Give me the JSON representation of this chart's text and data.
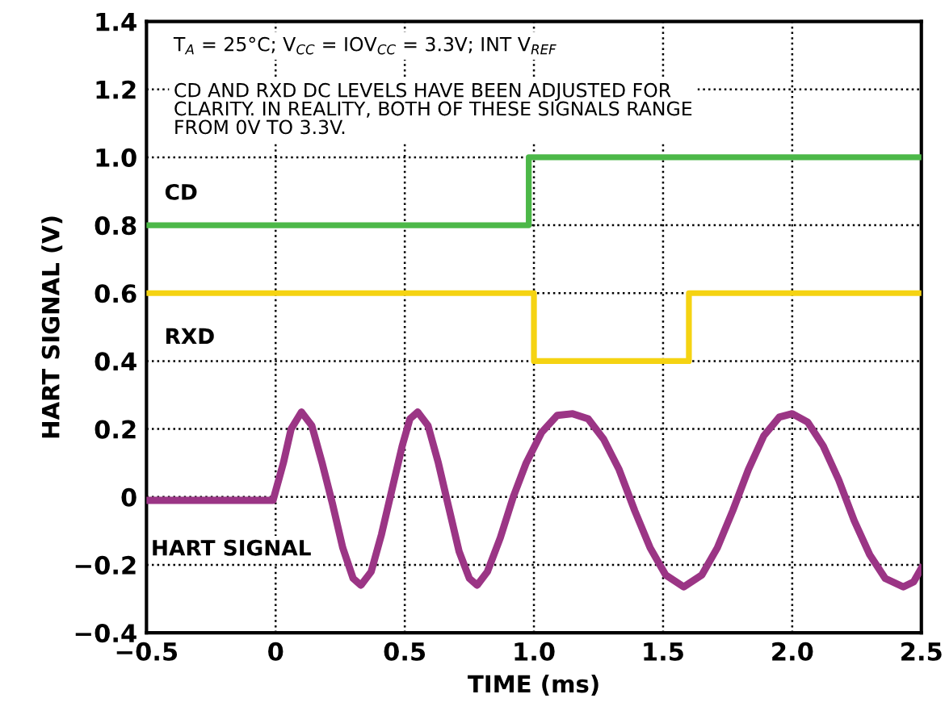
{
  "chart_data": {
    "type": "line",
    "xlabel": "TIME (ms)",
    "ylabel": "HART SIGNAL (V)",
    "xlim": [
      -0.5,
      2.5
    ],
    "xticks": [
      -0.5,
      0,
      0.5,
      {
        "value": 1.0,
        "label": "1.0"
      },
      1.5,
      {
        "value": 2.0,
        "label": "2.0"
      },
      2.5
    ],
    "ylim": [
      -0.4,
      1.4
    ],
    "yticks": [
      -0.4,
      -0.2,
      0,
      0.2,
      0.4,
      0.6,
      0.8,
      {
        "value": 1.0,
        "label": "1.0"
      },
      1.2,
      1.4
    ],
    "grid": true,
    "legend": false,
    "line_style": "solid",
    "marker": "none",
    "annotations": [
      "T$_{A}$ = 25°C; V$_{CC}$ = IOV$_{CC}$ = 3.3V; INT V$_{REF}$",
      "CD AND RXD DC LEVELS HAVE BEEN ADJUSTED FOR\nCLARITY. IN REALITY, BOTH OF THESE SIGNALS RANGE\nFROM 0V TO 3.3V."
    ],
    "series": [
      {
        "name": "CD",
        "type": "step",
        "color": "#4cb848",
        "x": [
          -0.5,
          0.98,
          2.5
        ],
        "values": [
          0.8,
          1.0,
          1.0
        ]
      },
      {
        "name": "RXD",
        "type": "step",
        "color": "#f5d312",
        "x": [
          -0.5,
          1.0,
          1.6,
          2.5
        ],
        "values": [
          0.6,
          0.4,
          0.6,
          0.6
        ]
      },
      {
        "name": "HART SIGNAL",
        "color": "#9b3585",
        "x": [
          -0.5,
          -0.3,
          -0.1,
          -0.01,
          0.03,
          0.06,
          0.1,
          0.14,
          0.18,
          0.22,
          0.26,
          0.3,
          0.33,
          0.37,
          0.41,
          0.45,
          0.49,
          0.52,
          0.55,
          0.59,
          0.63,
          0.67,
          0.71,
          0.75,
          0.78,
          0.82,
          0.87,
          0.92,
          0.97,
          1.03,
          1.09,
          1.15,
          1.21,
          1.27,
          1.33,
          1.39,
          1.45,
          1.51,
          1.58,
          1.65,
          1.71,
          1.77,
          1.83,
          1.89,
          1.95,
          2.0,
          2.06,
          2.12,
          2.18,
          2.24,
          2.3,
          2.36,
          2.43,
          2.47,
          2.5
        ],
        "values": [
          -0.01,
          -0.01,
          -0.01,
          -0.01,
          0.1,
          0.2,
          0.25,
          0.21,
          0.1,
          -0.02,
          -0.15,
          -0.24,
          -0.26,
          -0.22,
          -0.11,
          0.02,
          0.15,
          0.23,
          0.25,
          0.21,
          0.1,
          -0.03,
          -0.16,
          -0.24,
          -0.26,
          -0.22,
          -0.12,
          0.0,
          0.1,
          0.19,
          0.24,
          0.245,
          0.23,
          0.17,
          0.08,
          -0.04,
          -0.15,
          -0.23,
          -0.265,
          -0.23,
          -0.15,
          -0.04,
          0.08,
          0.18,
          0.235,
          0.245,
          0.22,
          0.15,
          0.05,
          -0.07,
          -0.17,
          -0.24,
          -0.265,
          -0.25,
          -0.21
        ]
      }
    ]
  }
}
